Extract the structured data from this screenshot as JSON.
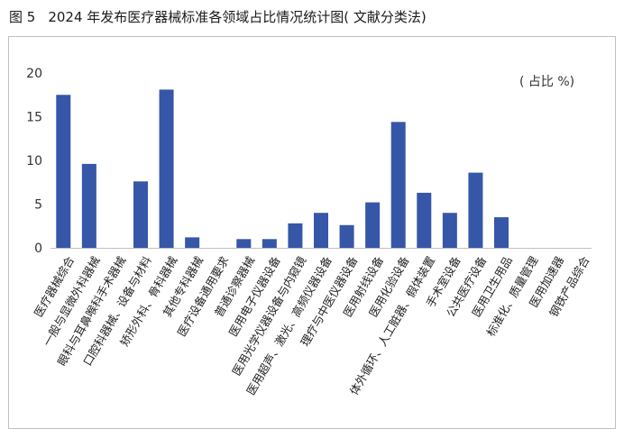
{
  "figure": {
    "number": "图 5",
    "title": "2024 年发布医疗器械标准各领域占比情况统计图( 文献分类法)"
  },
  "chart_data": {
    "type": "bar",
    "unit_label": "( 占比 %)",
    "ylim": [
      0,
      20
    ],
    "yticks": [
      0,
      5,
      10,
      15,
      20
    ],
    "grid": false,
    "bar_color": "#3656a8",
    "categories": [
      "医疗器械综合",
      "一般与显微外科器械",
      "眼科与耳鼻喉科手术器械",
      "口腔科器械、设备与材料",
      "矫形外科、骨科器械",
      "其他专科器械",
      "医疗设备通用要求",
      "普通诊察器械",
      "医用电子仪器设备",
      "医用光学仪器设备与内窥镜",
      "医用超声、激光、高频仪器设备",
      "理疗与中医仪器设备",
      "医用射线设备",
      "医用化验设备",
      "体外循环、人工脏器、假体装置",
      "手术室设备",
      "公共医疗设备",
      "医用卫生用品",
      "标准化、质量管理",
      "医用加速器",
      "钢铁产品综合"
    ],
    "values": [
      17.5,
      9.6,
      0,
      7.6,
      18.1,
      1.2,
      0,
      1.0,
      1.0,
      2.8,
      4.0,
      2.6,
      5.2,
      14.4,
      6.3,
      4.0,
      8.6,
      3.5,
      0,
      0,
      0
    ]
  }
}
